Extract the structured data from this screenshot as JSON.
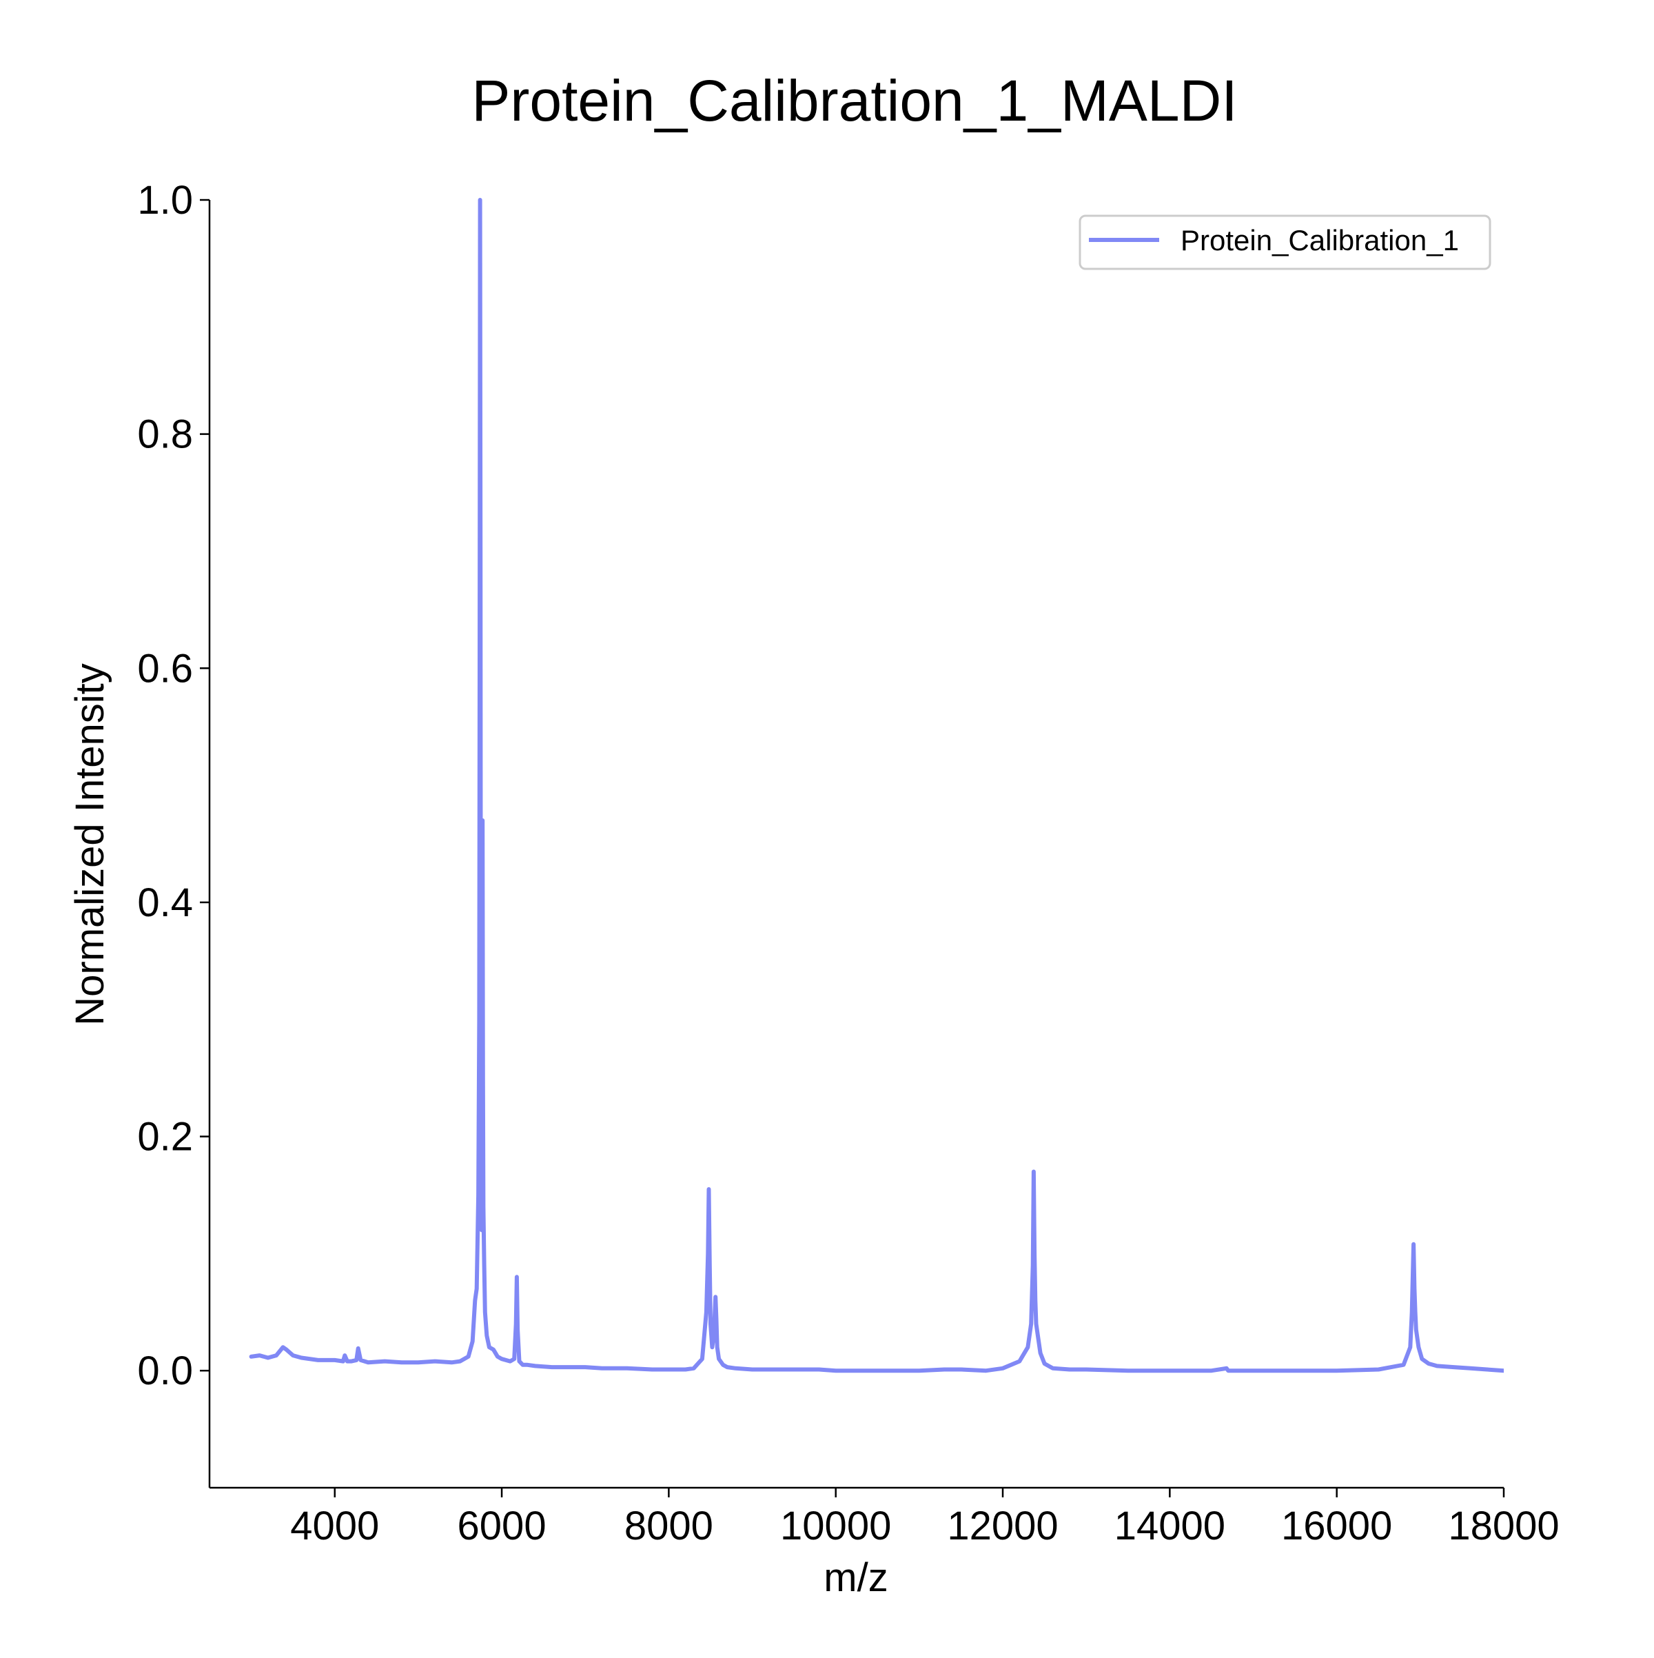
{
  "chart_data": {
    "type": "line",
    "title": "Protein_Calibration_1_MALDI",
    "xlabel": "m/z",
    "ylabel": "Normalized Intensity",
    "xlim": [
      2500,
      18000
    ],
    "ylim": [
      -0.1,
      1.0
    ],
    "x_ticks": [
      4000,
      6000,
      8000,
      10000,
      12000,
      14000,
      16000,
      18000
    ],
    "x_tick_labels": [
      "4000",
      "6000",
      "8000",
      "10000",
      "12000",
      "14000",
      "16000",
      "18000"
    ],
    "y_ticks": [
      0.0,
      0.2,
      0.4,
      0.6,
      0.8,
      1.0
    ],
    "y_tick_labels": [
      "0.0",
      "0.2",
      "0.4",
      "0.6",
      "0.8",
      "1.0"
    ],
    "grid": false,
    "legend_position": "top-right",
    "series": [
      {
        "name": "Protein_Calibration_1",
        "color": "#8088f5",
        "x": [
          3000,
          3100,
          3200,
          3300,
          3380,
          3420,
          3500,
          3600,
          3800,
          4000,
          4100,
          4120,
          4150,
          4200,
          4260,
          4280,
          4310,
          4400,
          4600,
          4800,
          5000,
          5200,
          5400,
          5500,
          5600,
          5650,
          5680,
          5700,
          5720,
          5730,
          5735,
          5740,
          5745,
          5750,
          5755,
          5760,
          5770,
          5775,
          5780,
          5790,
          5800,
          5820,
          5850,
          5900,
          5950,
          6000,
          6100,
          6150,
          6170,
          6180,
          6190,
          6210,
          6250,
          6300,
          6400,
          6600,
          6800,
          7000,
          7200,
          7500,
          7800,
          8000,
          8200,
          8300,
          8400,
          8450,
          8470,
          8480,
          8490,
          8500,
          8520,
          8540,
          8560,
          8570,
          8580,
          8600,
          8650,
          8700,
          8800,
          9000,
          9200,
          9500,
          9800,
          10000,
          10500,
          11000,
          11300,
          11500,
          11800,
          12000,
          12200,
          12300,
          12340,
          12360,
          12370,
          12380,
          12390,
          12400,
          12420,
          12450,
          12500,
          12600,
          12800,
          13000,
          13500,
          14000,
          14500,
          14680,
          14700,
          14720,
          15000,
          15500,
          16000,
          16500,
          16800,
          16880,
          16900,
          16920,
          16930,
          16940,
          16950,
          16980,
          17020,
          17100,
          17200,
          17400,
          17600,
          17800,
          18000
        ],
        "y": [
          0.012,
          0.013,
          0.011,
          0.013,
          0.02,
          0.018,
          0.013,
          0.011,
          0.009,
          0.009,
          0.008,
          0.013,
          0.008,
          0.008,
          0.009,
          0.019,
          0.009,
          0.007,
          0.008,
          0.007,
          0.007,
          0.008,
          0.007,
          0.008,
          0.012,
          0.025,
          0.06,
          0.07,
          0.15,
          0.3,
          0.6,
          1.0,
          0.7,
          0.2,
          0.15,
          0.12,
          0.47,
          0.25,
          0.14,
          0.09,
          0.05,
          0.03,
          0.02,
          0.018,
          0.012,
          0.01,
          0.008,
          0.01,
          0.04,
          0.08,
          0.035,
          0.008,
          0.005,
          0.005,
          0.004,
          0.003,
          0.003,
          0.003,
          0.002,
          0.002,
          0.001,
          0.001,
          0.001,
          0.002,
          0.01,
          0.05,
          0.1,
          0.155,
          0.09,
          0.04,
          0.02,
          0.03,
          0.063,
          0.045,
          0.02,
          0.01,
          0.005,
          0.003,
          0.002,
          0.001,
          0.001,
          0.001,
          0.001,
          0.0,
          0.0,
          0.0,
          0.001,
          0.001,
          0.0,
          0.002,
          0.008,
          0.02,
          0.04,
          0.09,
          0.17,
          0.1,
          0.06,
          0.04,
          0.03,
          0.015,
          0.006,
          0.002,
          0.001,
          0.001,
          0.0,
          0.0,
          0.0,
          0.002,
          0.0,
          0.0,
          0.0,
          0.0,
          0.0,
          0.001,
          0.005,
          0.02,
          0.05,
          0.108,
          0.07,
          0.05,
          0.035,
          0.02,
          0.01,
          0.006,
          0.004,
          0.003,
          0.002,
          0.001,
          0.0
        ]
      }
    ]
  }
}
